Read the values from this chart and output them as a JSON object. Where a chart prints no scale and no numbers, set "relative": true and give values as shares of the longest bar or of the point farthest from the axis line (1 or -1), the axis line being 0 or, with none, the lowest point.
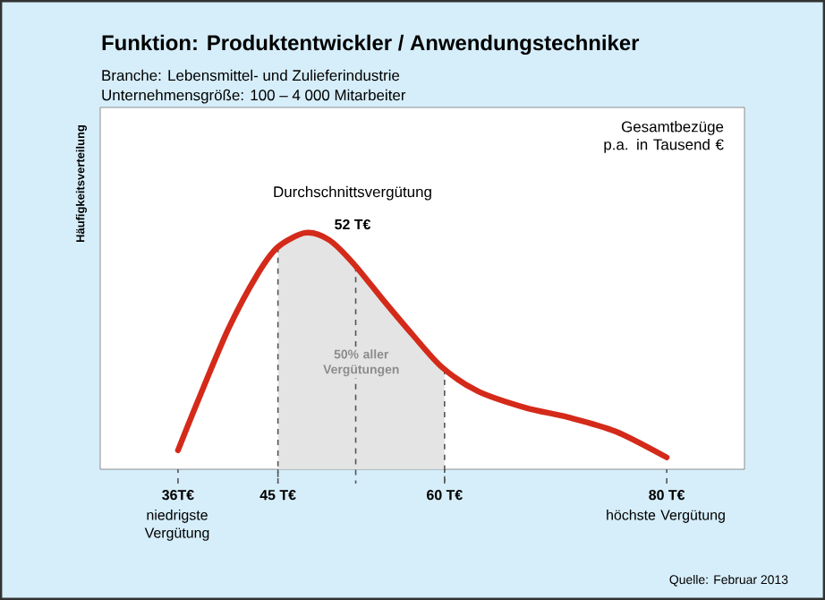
{
  "chart_data": {
    "type": "line",
    "relative": true,
    "title": "Funktion: Produktentwickler / Anwendungstechniker",
    "subtitle": "Branche: Lebensmittel- und Zulieferindustrie",
    "ylabel": "Häufigkeitsverteilung",
    "series": [
      {
        "color": "#d42a1a",
        "x": [
          36,
          37.8,
          40.5,
          43.1,
          45,
          47.5,
          49.6,
          51.8,
          54.4,
          57.1,
          59.8,
          63,
          67.3,
          71.1,
          75.4,
          80
        ],
        "values": [
          0.08,
          0.29,
          0.59,
          0.82,
          0.94,
          1.0,
          0.97,
          0.87,
          0.72,
          0.57,
          0.43,
          0.33,
          0.26,
          0.22,
          0.16,
          0.05
        ]
      },
      {
        "type": "area",
        "color": "#e4e4e4",
        "x": [
          45,
          47.5,
          49.6,
          51.8,
          54.4,
          57.1,
          60
        ],
        "values": [
          0.94,
          1.0,
          0.97,
          0.87,
          0.72,
          0.57,
          0.42
        ]
      }
    ],
    "xlim": [
      29,
      87
    ],
    "xticks": [
      {
        "value": 36,
        "label": "36T€"
      },
      {
        "value": 45,
        "label": "45 T€"
      },
      {
        "value": 60,
        "label": "60 T€"
      },
      {
        "value": 80,
        "label": "80 T€"
      }
    ],
    "ref_lines": [
      {
        "axis": "x",
        "value": 45,
        "color": "#555555",
        "line_style": "dashed"
      },
      {
        "axis": "x",
        "value": 52,
        "color": "#555555",
        "line_style": "dashed"
      },
      {
        "axis": "x",
        "value": 60,
        "color": "#555555",
        "line_style": "dashed"
      }
    ],
    "annotations": [
      "Unternehmensgröße: 100 – 4 000 Mitarbeiter",
      "Durchschnittsvergütung",
      "52 T€",
      "Quelle: Februar 2013",
      "Gesamtbezüge p.a. in Tausend €",
      {
        "text": "50% aller Vergütungen",
        "x": 52.5,
        "y": 0.45
      },
      "niedrigste Vergütung",
      "höchste Vergütung"
    ]
  }
}
